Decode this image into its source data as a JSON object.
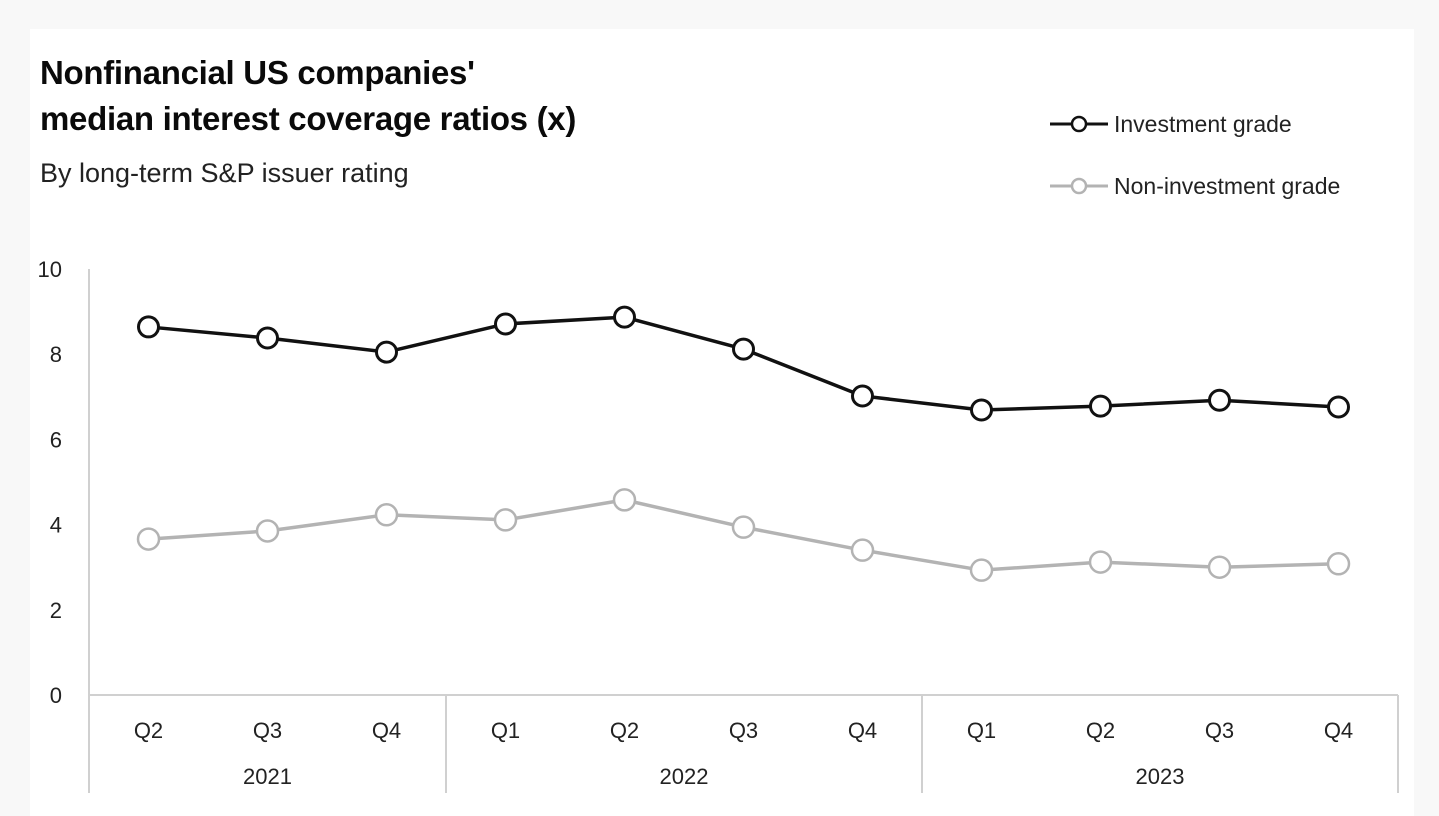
{
  "chart_data": {
    "type": "line",
    "title": "Nonfinancial US companies' median interest coverage ratios (x)",
    "title_lines": [
      "Nonfinancial US companies'",
      "median interest coverage ratios (x)"
    ],
    "subtitle": "By long-term S&P issuer rating",
    "xlabel": "",
    "ylabel": "",
    "ylim": [
      0,
      10
    ],
    "yticks": [
      0,
      2,
      4,
      6,
      8,
      10
    ],
    "grid": false,
    "legend_position": "top-right",
    "x": [
      "Q2 2021",
      "Q3 2021",
      "Q4 2021",
      "Q1 2022",
      "Q2 2022",
      "Q3 2022",
      "Q4 2022",
      "Q1 2023",
      "Q2 2023",
      "Q3 2023",
      "Q4 2023"
    ],
    "quarter_labels": [
      "Q2",
      "Q3",
      "Q4",
      "Q1",
      "Q2",
      "Q3",
      "Q4",
      "Q1",
      "Q2",
      "Q3",
      "Q4"
    ],
    "year_groups": [
      {
        "label": "2021",
        "count": 3
      },
      {
        "label": "2022",
        "count": 4
      },
      {
        "label": "2023",
        "count": 4
      }
    ],
    "series": [
      {
        "name": "Investment grade",
        "color": "#111111",
        "values": [
          8.64,
          8.38,
          8.05,
          8.71,
          8.87,
          8.12,
          7.02,
          6.69,
          6.78,
          6.92,
          6.76
        ]
      },
      {
        "name": "Non-investment grade",
        "color": "#b3b3b3",
        "values": [
          3.66,
          3.85,
          4.23,
          4.11,
          4.58,
          3.94,
          3.4,
          2.93,
          3.12,
          3.0,
          3.08
        ]
      }
    ]
  },
  "colors": {
    "axis": "#d0d0d0",
    "marker_fill": "#ffffff"
  }
}
